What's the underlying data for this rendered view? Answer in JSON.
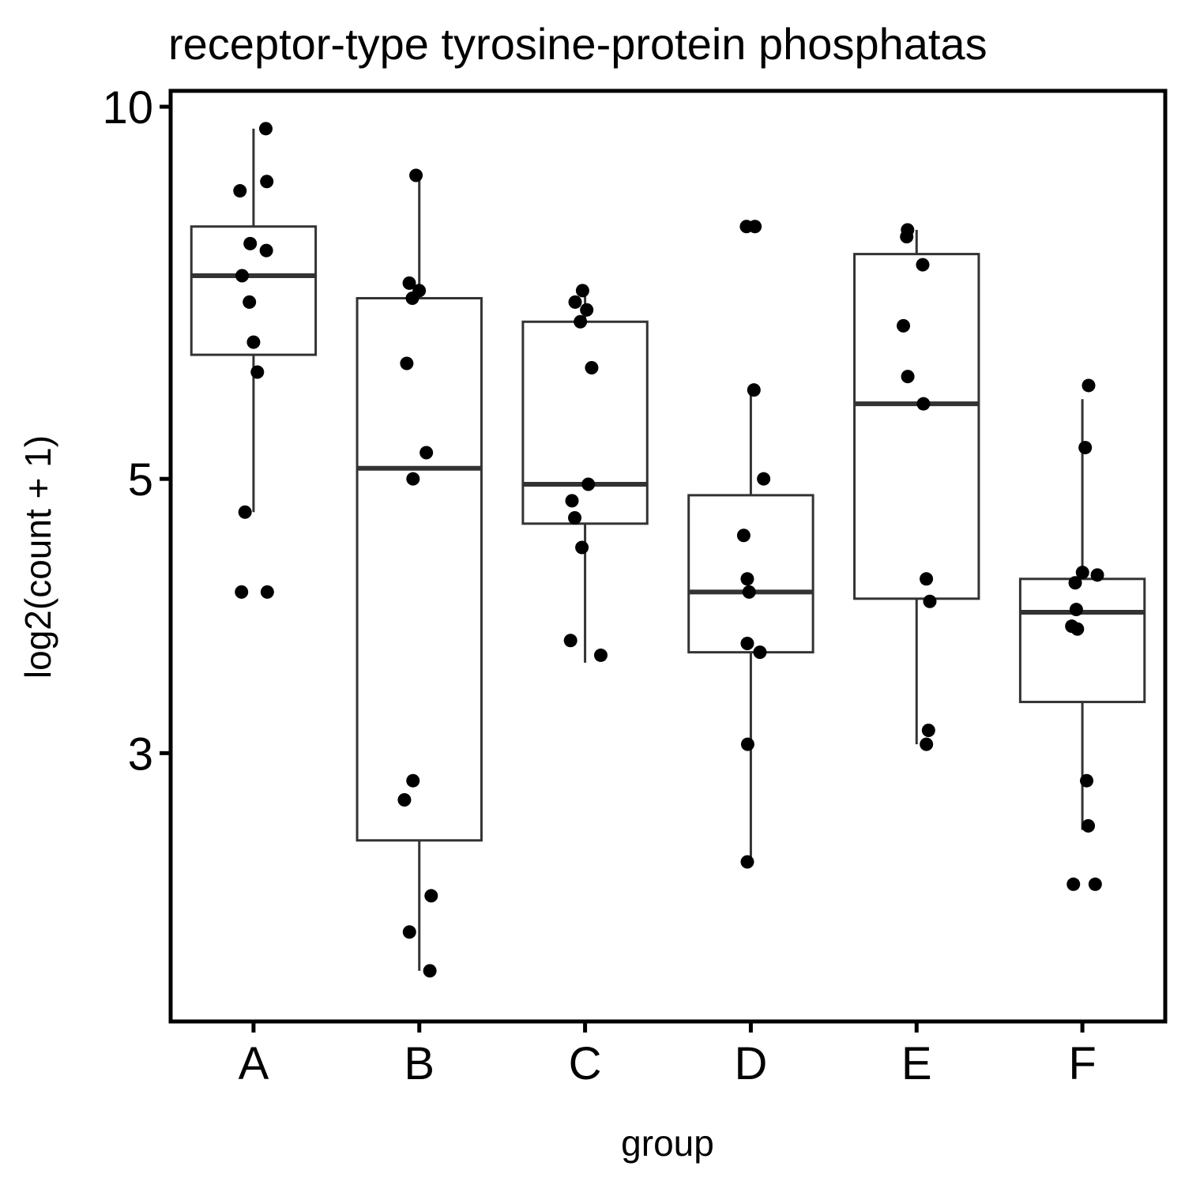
{
  "chart_data": {
    "type": "box",
    "title": "receptor-type tyrosine-protein phosphatas",
    "xlabel": "group",
    "ylabel": "log2(count + 1)",
    "y_scale": "log",
    "ylim": [
      1.82,
      10.3
    ],
    "y_ticks": [
      3,
      5,
      10
    ],
    "categories": [
      "A",
      "B",
      "C",
      "D",
      "E",
      "F"
    ],
    "grid": false,
    "legend": "none",
    "groups": [
      {
        "name": "A",
        "box": {
          "q1": 6.3,
          "median": 7.3,
          "q3": 8.0,
          "whisker_low": 4.7,
          "whisker_high": 9.6
        },
        "points": [
          9.6,
          8.7,
          8.55,
          7.75,
          7.65,
          7.3,
          6.95,
          6.45,
          6.1,
          4.7,
          4.05,
          4.05
        ]
      },
      {
        "name": "B",
        "box": {
          "q1": 2.55,
          "median": 5.1,
          "q3": 7.0,
          "whisker_low": 2.0,
          "whisker_high": 8.8
        },
        "points": [
          8.8,
          7.2,
          7.1,
          7.0,
          6.2,
          5.25,
          5.0,
          2.85,
          2.75,
          2.3,
          2.15,
          2.0
        ]
      },
      {
        "name": "C",
        "box": {
          "q1": 4.6,
          "median": 4.95,
          "q3": 6.7,
          "whisker_low": 3.55,
          "whisker_high": 7.05
        },
        "points": [
          7.1,
          6.95,
          6.85,
          6.7,
          6.15,
          4.95,
          4.8,
          4.65,
          4.4,
          3.7,
          3.6
        ]
      },
      {
        "name": "D",
        "box": {
          "q1": 3.62,
          "median": 4.05,
          "q3": 4.85,
          "whisker_low": 2.45,
          "whisker_high": 5.9
        },
        "points": [
          8.0,
          8.0,
          5.9,
          5.0,
          4.5,
          4.15,
          4.05,
          3.68,
          3.62,
          3.05,
          2.45
        ]
      },
      {
        "name": "E",
        "box": {
          "q1": 4.0,
          "median": 5.75,
          "q3": 7.6,
          "whisker_low": 3.05,
          "whisker_high": 7.95
        },
        "points": [
          7.95,
          7.85,
          7.45,
          6.65,
          6.05,
          5.75,
          4.15,
          3.98,
          3.13,
          3.05
        ]
      },
      {
        "name": "F",
        "box": {
          "q1": 3.3,
          "median": 3.9,
          "q3": 4.15,
          "whisker_low": 2.6,
          "whisker_high": 5.8
        },
        "points": [
          5.95,
          5.3,
          4.2,
          4.18,
          4.12,
          3.92,
          3.8,
          3.78,
          2.85,
          2.62,
          2.35,
          2.35
        ]
      }
    ]
  }
}
